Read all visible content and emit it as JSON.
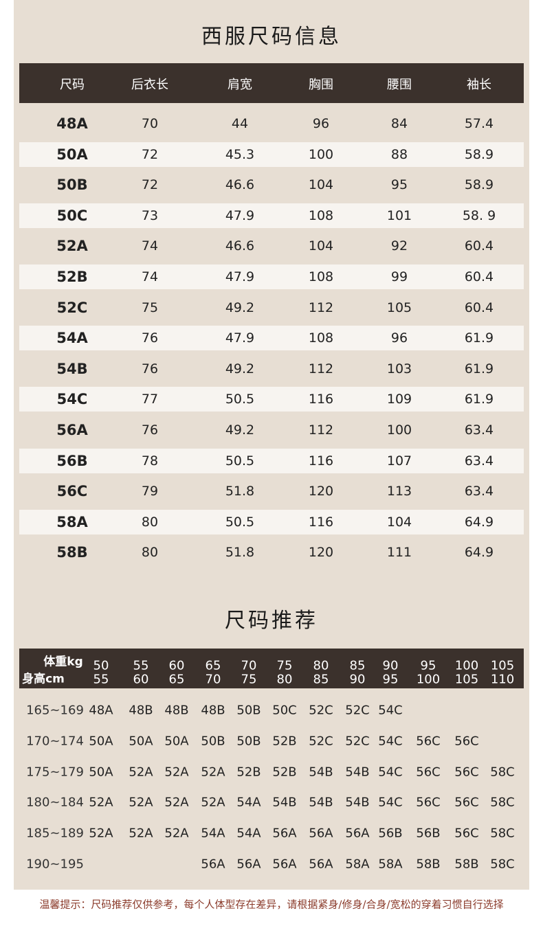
{
  "title": "西服尺码信息",
  "size_table": {
    "header": [
      "尺码",
      "后衣长",
      "肩宽",
      "胸围",
      "腰围",
      "袖长"
    ],
    "rows": [
      [
        "48A",
        "70",
        "44",
        "96",
        "84",
        "57.4"
      ],
      [
        "50A",
        "72",
        "45.3",
        "100",
        "88",
        "58.9"
      ],
      [
        "50B",
        "72",
        "46.6",
        "104",
        "95",
        "58.9"
      ],
      [
        "50C",
        "73",
        "47.9",
        "108",
        "101",
        "58. 9"
      ],
      [
        "52A",
        "74",
        "46.6",
        "104",
        "92",
        "60.4"
      ],
      [
        "52B",
        "74",
        "47.9",
        "108",
        "99",
        "60.4"
      ],
      [
        "52C",
        "75",
        "49.2",
        "112",
        "105",
        "60.4"
      ],
      [
        "54A",
        "76",
        "47.9",
        "108",
        "96",
        "61.9"
      ],
      [
        "54B",
        "76",
        "49.2",
        "112",
        "103",
        "61.9"
      ],
      [
        "54C",
        "77",
        "50.5",
        "116",
        "109",
        "61.9"
      ],
      [
        "56A",
        "76",
        "49.2",
        "112",
        "100",
        "63.4"
      ],
      [
        "56B",
        "78",
        "50.5",
        "116",
        "107",
        "63.4"
      ],
      [
        "56C",
        "79",
        "51.8",
        "120",
        "113",
        "63.4"
      ],
      [
        "58A",
        "80",
        "50.5",
        "116",
        "104",
        "64.9"
      ],
      [
        "58B",
        "80",
        "51.8",
        "120",
        "111",
        "64.9"
      ]
    ]
  },
  "recommend_title": "尺码推荐",
  "recommend_table": {
    "corner_weight": "体重kg",
    "corner_height": "身高cm",
    "weights": [
      [
        "50",
        "55"
      ],
      [
        "55",
        "60"
      ],
      [
        "60",
        "65"
      ],
      [
        "65",
        "70"
      ],
      [
        "70",
        "75"
      ],
      [
        "75",
        "80"
      ],
      [
        "80",
        "85"
      ],
      [
        "85",
        "90"
      ],
      [
        "90",
        "95"
      ],
      [
        "95",
        "100"
      ],
      [
        "100",
        "105"
      ],
      [
        "105",
        "110"
      ]
    ],
    "rows": [
      {
        "height": "165~169",
        "sizes": [
          "48A",
          "48B",
          "48B",
          "48B",
          "50B",
          "50C",
          "52C",
          "52C",
          "54C",
          null,
          null,
          null
        ]
      },
      {
        "height": "170~174",
        "sizes": [
          "50A",
          "50A",
          "50A",
          "50B",
          "50B",
          "52B",
          "52C",
          "52C",
          "54C",
          "56C",
          "56C",
          null
        ]
      },
      {
        "height": "175~179",
        "sizes": [
          "50A",
          "52A",
          "52A",
          "52A",
          "52B",
          "52B",
          "54B",
          "54B",
          "54C",
          "56C",
          "56C",
          "58C"
        ]
      },
      {
        "height": "180~184",
        "sizes": [
          "52A",
          "52A",
          "52A",
          "52A",
          "54A",
          "54B",
          "54B",
          "54B",
          "54C",
          "56C",
          "56C",
          "58C"
        ]
      },
      {
        "height": "185~189",
        "sizes": [
          "52A",
          "52A",
          "52A",
          "54A",
          "54A",
          "56A",
          "56A",
          "56A",
          "56B",
          "56B",
          "56C",
          "58C"
        ]
      },
      {
        "height": "190~195",
        "sizes": [
          null,
          null,
          null,
          "56A",
          "56A",
          "56A",
          "56A",
          "58A",
          "58A",
          "58B",
          "58B",
          "58C"
        ]
      }
    ]
  },
  "note": "温馨提示：尺码推荐仅供参考，每个人体型存在差异，请根据紧身/修身/合身/宽松的穿着习惯自行选择"
}
